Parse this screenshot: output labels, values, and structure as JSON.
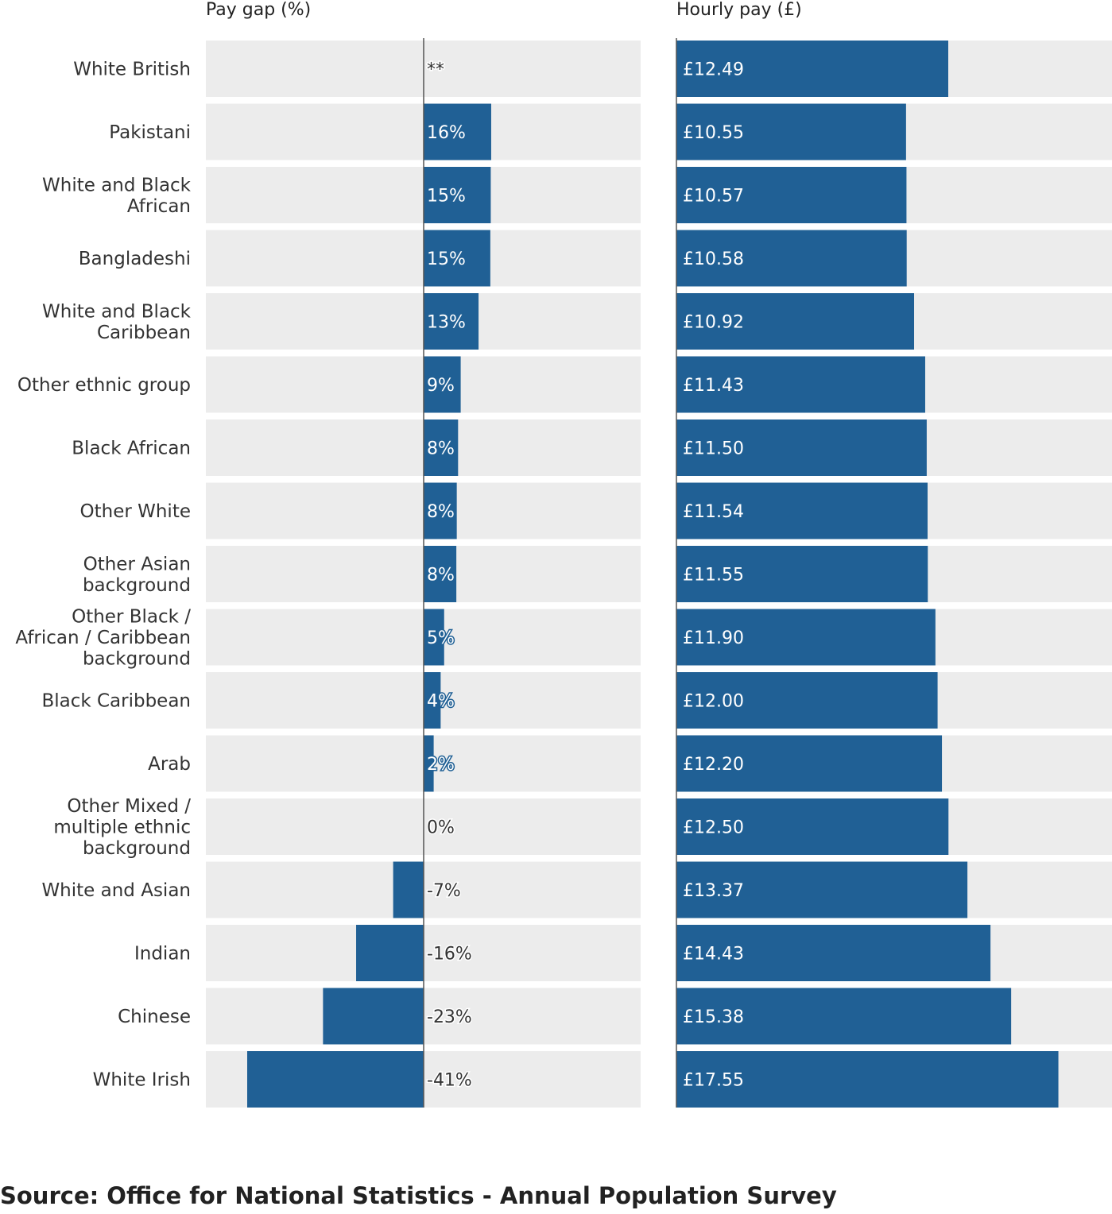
{
  "chart_data": [
    {
      "type": "bar",
      "orientation": "horizontal",
      "title": "Pay gap (%)",
      "categories": [
        "White British",
        "Pakistani",
        "White and Black African",
        "Bangladeshi",
        "White and Black Caribbean",
        "Other ethnic group",
        "Black African",
        "Other White",
        "Other Asian background",
        "Other Black / African / Caribbean background",
        "Black Caribbean",
        "Arab",
        "Other Mixed / multiple ethnic background",
        "White and Asian",
        "Indian",
        "Chinese",
        "White Irish"
      ],
      "values": [
        null,
        15.5,
        15.4,
        15.3,
        12.6,
        8.5,
        7.9,
        7.6,
        7.5,
        4.7,
        3.9,
        2.3,
        0.0,
        -7.0,
        -15.5,
        -23.1,
        -40.5
      ],
      "value_labels": [
        "**",
        "16%",
        "15%",
        "15%",
        "13%",
        "9%",
        "8%",
        "8%",
        "8%",
        "5%",
        "4%",
        "2%",
        "0%",
        "-7%",
        "-16%",
        "-23%",
        "-41%"
      ],
      "xlim": [
        -50,
        50
      ],
      "bar_color": "#206095",
      "background_color": "#ececec"
    },
    {
      "type": "bar",
      "orientation": "horizontal",
      "title": "Hourly pay (£)",
      "categories": [
        "White British",
        "Pakistani",
        "White and Black African",
        "Bangladeshi",
        "White and Black Caribbean",
        "Other ethnic group",
        "Black African",
        "Other White",
        "Other Asian background",
        "Other Black / African / Caribbean background",
        "Black Caribbean",
        "Arab",
        "Other Mixed / multiple ethnic background",
        "White and Asian",
        "Indian",
        "Chinese",
        "White Irish"
      ],
      "values": [
        12.49,
        10.55,
        10.57,
        10.58,
        10.92,
        11.43,
        11.5,
        11.54,
        11.55,
        11.9,
        12.0,
        12.2,
        12.5,
        13.37,
        14.43,
        15.38,
        17.55
      ],
      "value_labels": [
        "£12.49",
        "£10.55",
        "£10.57",
        "£10.58",
        "£10.92",
        "£11.43",
        "£11.50",
        "£11.54",
        "£11.55",
        "£11.90",
        "£12.00",
        "£12.20",
        "£12.50",
        "£13.37",
        "£14.43",
        "£15.38",
        "£17.55"
      ],
      "xlim": [
        0,
        20
      ],
      "bar_color": "#206095",
      "background_color": "#ececec"
    }
  ],
  "category_display_lines": [
    [
      "White British"
    ],
    [
      "Pakistani"
    ],
    [
      "White and Black",
      "African"
    ],
    [
      "Bangladeshi"
    ],
    [
      "White and Black",
      "Caribbean"
    ],
    [
      "Other ethnic group"
    ],
    [
      "Black African"
    ],
    [
      "Other White"
    ],
    [
      "Other Asian",
      "background"
    ],
    [
      "Other Black /",
      "African / Caribbean",
      "background"
    ],
    [
      "Black Caribbean"
    ],
    [
      "Arab"
    ],
    [
      "Other Mixed /",
      "multiple ethnic",
      "background"
    ],
    [
      "White and Asian"
    ],
    [
      "Indian"
    ],
    [
      "Chinese"
    ],
    [
      "White Irish"
    ]
  ],
  "source": "Source: Office for National Statistics - Annual Population Survey"
}
